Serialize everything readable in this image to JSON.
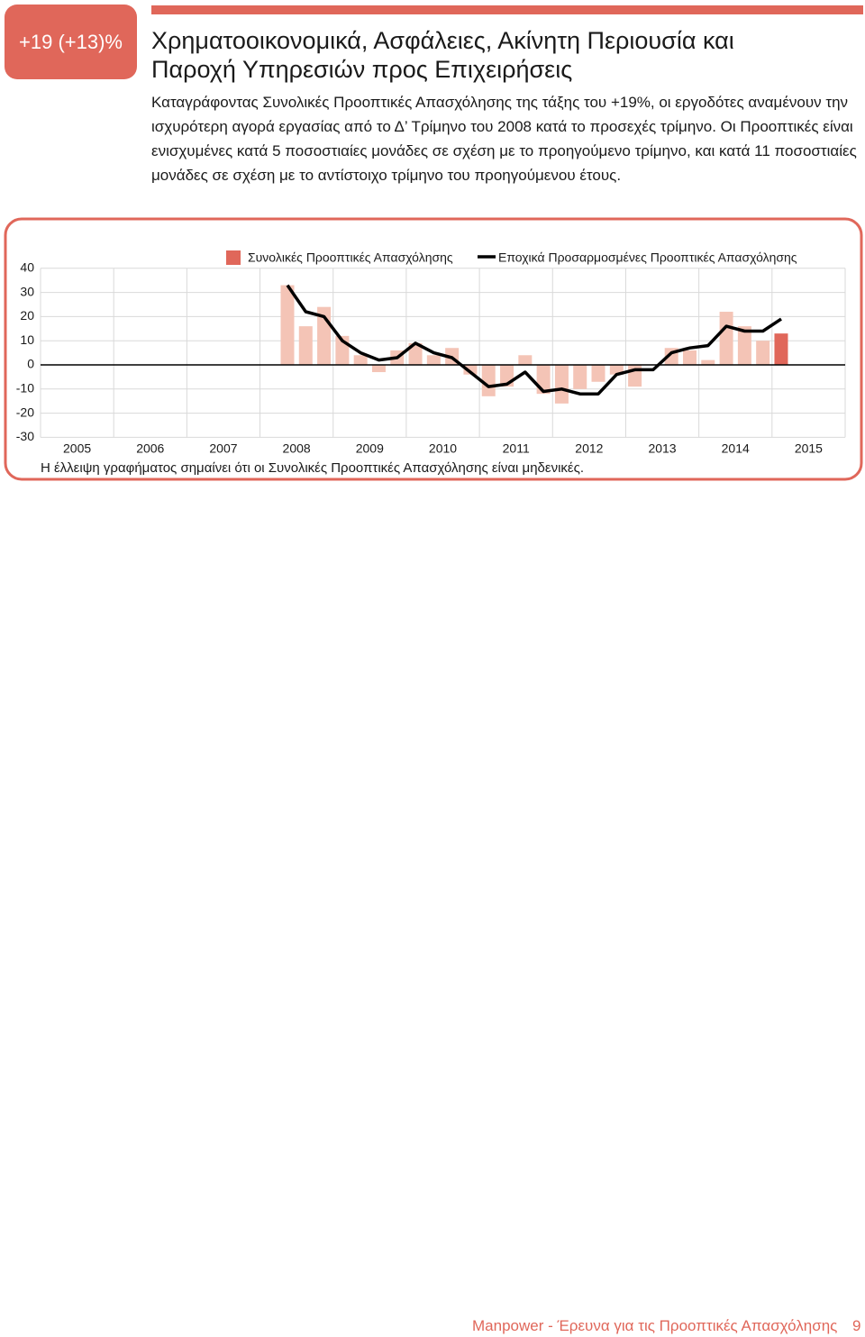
{
  "header": {
    "badge": "+19 (+13)%",
    "title": "Χρηματοοικονομικά, Ασφάλειες, Ακίνητη Περιουσία και Παροχή Υπηρεσιών προς Επιχειρήσεις"
  },
  "body": "Καταγράφοντας Συνολικές Προοπτικές Απασχόλησης της τάξης του +19%, οι εργοδότες αναμένουν την ισχυρότερη αγορά εργασίας από το Δ’ Τρίμηνο του 2008 κατά το προσεχές τρίμηνο. Οι Προοπτικές είναι ενισχυμένες κατά 5 ποσοστιαίες μονάδες σε σχέση με το προηγούμενο τρίμηνο, και κατά 11 ποσοστιαίες μονάδες σε σχέση με το αντίστοιχο τρίμηνο του προηγούμενου έτους.",
  "chart_data": {
    "type": "bar-line",
    "x": [
      2008.25,
      2008.5,
      2008.75,
      2009,
      2009.25,
      2009.5,
      2009.75,
      2010,
      2010.25,
      2010.5,
      2010.75,
      2011,
      2011.25,
      2011.5,
      2011.75,
      2012,
      2012.25,
      2012.5,
      2012.75,
      2013,
      2013.25,
      2013.5,
      2013.75,
      2014,
      2014.25,
      2014.5,
      2014.75,
      2015
    ],
    "series": [
      {
        "name": "Συνολικές Προοπτικές Απασχόλησης",
        "type": "bar",
        "color": "#e0675a",
        "colors": [
          "#f4c4b6",
          "#f4c4b6",
          "#f4c4b6",
          "#f4c4b6",
          "#f4c4b6",
          "#f4c4b6",
          "#f4c4b6",
          "#f4c4b6",
          "#f4c4b6",
          "#f4c4b6",
          "#f4c4b6",
          "#f4c4b6",
          "#f4c4b6",
          "#f4c4b6",
          "#f4c4b6",
          "#f4c4b6",
          "#f4c4b6",
          "#f4c4b6",
          "#f4c4b6",
          "#f4c4b6",
          "#f4c4b6",
          "#f4c4b6",
          "#f4c4b6",
          "#f4c4b6",
          "#f4c4b6",
          "#f4c4b6",
          "#f4c4b6",
          "#e0675a"
        ],
        "values": [
          33,
          16,
          24,
          12,
          4,
          -3,
          6,
          9,
          4,
          7,
          -4,
          -13,
          -9,
          4,
          -12,
          -16,
          -10,
          -7,
          -4,
          -9,
          0,
          7,
          6,
          2,
          22,
          16,
          10,
          13
        ]
      },
      {
        "name": "Εποχικά Προσαρμοσμένες Προοπτικές Απασχόλησης",
        "type": "line",
        "color": "#000000",
        "values": [
          33,
          22,
          20,
          10,
          5,
          2,
          3,
          9,
          5,
          3,
          -3,
          -9,
          -8,
          -3,
          -11,
          -10,
          -12,
          -12,
          -4,
          -2,
          -2,
          5,
          7,
          8,
          16,
          14,
          14,
          19
        ]
      }
    ],
    "xlim": [
      2005,
      2016
    ],
    "xticks": [
      2005,
      2006,
      2007,
      2008,
      2009,
      2010,
      2011,
      2012,
      2013,
      2014,
      2015
    ],
    "ylim": [
      -30,
      40
    ],
    "yticks": [
      40,
      30,
      20,
      10,
      0,
      -10,
      -20,
      -30
    ],
    "grid": true,
    "note": "Η έλλειψη γραφήματος σημαίνει ότι οι Συνολικές Προοπτικές Απασχόλησης είναι μηδενικές."
  },
  "footer": {
    "text": "Manpower - Έρευνα για τις Προοπτικές Απασχόλησης",
    "page": "9"
  }
}
